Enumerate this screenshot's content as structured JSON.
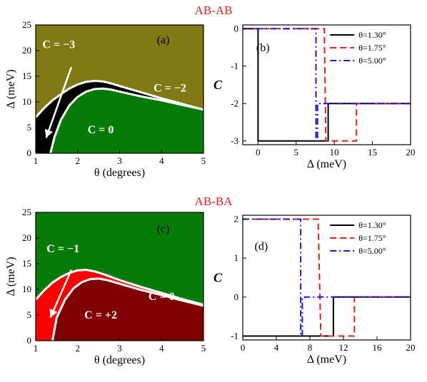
{
  "figure": {
    "sections": [
      {
        "title": "AB-AB"
      },
      {
        "title": "AB-BA"
      }
    ]
  },
  "chart_data": [
    {
      "panel": "(a)",
      "type": "heatmap",
      "xlabel": "θ (degrees)",
      "ylabel": "Δ (meV)",
      "xlim": [
        1,
        5
      ],
      "ylim": [
        0,
        25
      ],
      "xticks": [
        1,
        2,
        3,
        4,
        5
      ],
      "yticks": [
        0,
        5,
        10,
        15,
        20,
        25
      ],
      "background_color": "#807a14",
      "regions": [
        {
          "label": "C = −3",
          "color": "#000000"
        },
        {
          "label": "C = −2",
          "color": "#807a14"
        },
        {
          "label": "C = 0",
          "color": "#077b07"
        }
      ],
      "boundaries": {
        "upper": {
          "x": [
            1.0,
            1.2,
            1.4,
            1.6,
            1.8,
            2.0,
            2.2,
            2.4,
            2.6,
            2.8,
            3.0,
            3.5,
            4.0,
            4.5,
            5.0
          ],
          "y": [
            7.0,
            8.8,
            10.3,
            11.5,
            12.6,
            13.4,
            13.9,
            14.1,
            14.0,
            13.6,
            13.1,
            11.9,
            10.7,
            9.6,
            8.5
          ]
        },
        "lower": {
          "x": [
            1.35,
            1.45,
            1.6,
            1.8,
            2.0,
            2.2,
            2.4,
            2.6,
            2.8,
            3.0,
            3.5,
            4.0,
            4.5,
            5.0
          ],
          "y": [
            0.0,
            3.2,
            6.5,
            9.3,
            11.0,
            12.0,
            12.5,
            12.6,
            12.4,
            12.0,
            11.1,
            10.3,
            9.4,
            8.5
          ]
        }
      },
      "arrow_to": {
        "x": 1.25,
        "y": 3.0
      }
    },
    {
      "panel": "(b)",
      "type": "line",
      "xlabel": "Δ (meV)",
      "ylabel": "C",
      "xlim": [
        -2,
        20
      ],
      "ylim": [
        -3.1,
        0.1
      ],
      "xticks": [
        0,
        5,
        10,
        15,
        20
      ],
      "yticks": [
        0,
        -1,
        -2,
        -3
      ],
      "legend_position": "top-right",
      "series": [
        {
          "name": "θ=1.30°",
          "color": "#000000",
          "dash": "solid",
          "x": [
            -2,
            0,
            0,
            9.2,
            9.2,
            20
          ],
          "y": [
            0,
            0,
            -3,
            -3,
            -2,
            -2
          ]
        },
        {
          "name": "θ=1.75°",
          "color": "#e0201b",
          "dash": "dashed",
          "x": [
            -2,
            2,
            8.7,
            8.7,
            8.9,
            9.1,
            12.9,
            12.9,
            20
          ],
          "y": [
            0,
            0,
            0,
            -0.2,
            -3,
            -3,
            -3,
            -2,
            -2
          ]
        },
        {
          "name": "θ=5.00°",
          "color": "#1a1ad8",
          "dash": "dashdot",
          "x": [
            -2,
            7.6,
            7.6,
            7.8,
            7.8,
            20
          ],
          "y": [
            0,
            0,
            -3,
            -3,
            -2,
            -2
          ]
        }
      ]
    },
    {
      "panel": "(c)",
      "type": "heatmap",
      "xlabel": "θ (degrees)",
      "ylabel": "Δ (meV)",
      "xlim": [
        1,
        5
      ],
      "ylim": [
        0,
        25
      ],
      "xticks": [
        1,
        2,
        3,
        4,
        5
      ],
      "yticks": [
        0,
        5,
        10,
        15,
        20,
        25
      ],
      "background_color": "#077b07",
      "regions": [
        {
          "label": "C = −1",
          "color": "#ff0000"
        },
        {
          "label": "C = 0",
          "color": "#077b07"
        },
        {
          "label": "C = +2",
          "color": "#7f0000"
        }
      ],
      "boundaries": {
        "upper": {
          "x": [
            1.0,
            1.2,
            1.4,
            1.6,
            1.8,
            2.0,
            2.2,
            2.4,
            2.6,
            2.8,
            3.0,
            3.5,
            4.0,
            4.5,
            5.0
          ],
          "y": [
            8.0,
            9.8,
            11.3,
            12.4,
            13.2,
            13.7,
            13.8,
            13.5,
            13.0,
            12.4,
            11.8,
            10.5,
            9.3,
            8.1,
            7.0
          ]
        },
        "lower": {
          "x": [
            1.4,
            1.5,
            1.7,
            1.9,
            2.1,
            2.3,
            2.5,
            2.7,
            3.0,
            3.5,
            4.0,
            4.5,
            5.0
          ],
          "y": [
            0.0,
            4.5,
            8.0,
            10.2,
            11.4,
            12.0,
            12.1,
            11.8,
            11.1,
            9.9,
            8.9,
            7.8,
            6.8
          ]
        }
      },
      "arrow_to": {
        "x": 1.35,
        "y": 4.5
      }
    },
    {
      "panel": "(d)",
      "type": "line",
      "xlabel": "Δ (meV)",
      "ylabel": "C",
      "xlim": [
        0,
        20
      ],
      "ylim": [
        -1.1,
        2.1
      ],
      "xticks": [
        0,
        4,
        8,
        12,
        16,
        20
      ],
      "yticks": [
        2,
        1,
        0,
        -1
      ],
      "legend_position": "top-right",
      "series": [
        {
          "name": "θ=1.30°",
          "color": "#000000",
          "dash": "solid",
          "x": [
            0,
            10.8,
            10.8,
            20
          ],
          "y": [
            -1,
            -1,
            0,
            0
          ]
        },
        {
          "name": "θ=1.75°",
          "color": "#e0201b",
          "dash": "dashed",
          "x": [
            0,
            9.0,
            9.0,
            9.3,
            9.4,
            13.3,
            13.3,
            20
          ],
          "y": [
            2,
            2,
            1.8,
            -1,
            -1,
            -1,
            0,
            0
          ]
        },
        {
          "name": "θ=5.00°",
          "color": "#1a1ad8",
          "dash": "dashdot",
          "x": [
            0,
            6.9,
            6.9,
            7.1,
            7.1,
            7.4,
            7.4,
            20
          ],
          "y": [
            2,
            2,
            -1,
            -1,
            -0.05,
            -0.05,
            0,
            0
          ]
        }
      ]
    }
  ]
}
